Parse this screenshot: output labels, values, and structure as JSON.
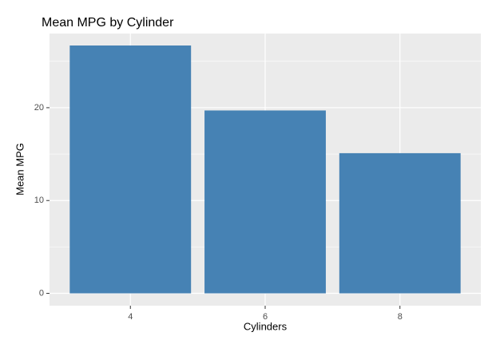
{
  "chart_data": {
    "type": "bar",
    "title": "Mean MPG by Cylinder",
    "x_label": "Cylinders",
    "y_label": "Mean MPG",
    "categories": [
      "4",
      "6",
      "8"
    ],
    "values": [
      26.7,
      19.7,
      15.1
    ],
    "color": "#4682b4",
    "ylim": [
      -1.33,
      27.99
    ],
    "yticks": [
      0,
      10,
      20
    ],
    "minor_yticks": [
      5,
      15,
      25
    ],
    "grid": true
  }
}
